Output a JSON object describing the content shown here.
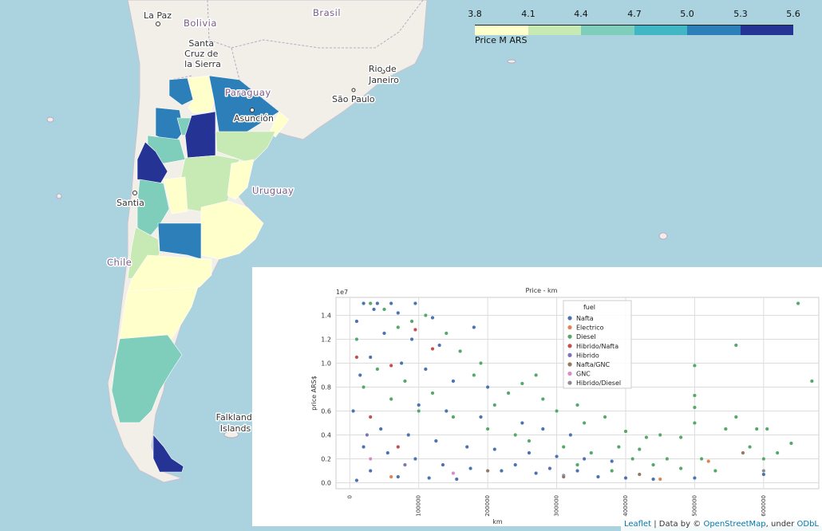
{
  "map": {
    "places": [
      {
        "key": "lapaz",
        "text": "La Paz"
      },
      {
        "key": "bolivia",
        "text": "Bolivia"
      },
      {
        "key": "santacruz",
        "lines": [
          "Santa",
          "Cruz de",
          "la Sierra"
        ]
      },
      {
        "key": "brasil",
        "text": "Brasil"
      },
      {
        "key": "paraguay",
        "text": "Paraguay"
      },
      {
        "key": "asuncion",
        "text": "Asunción"
      },
      {
        "key": "riodejaneiro",
        "lines": [
          "Rio de",
          "Janeiro"
        ]
      },
      {
        "key": "saopaulo",
        "text": "São Paulo"
      },
      {
        "key": "uruguay",
        "text": "Uruguay"
      },
      {
        "key": "santiago",
        "text": "Santia"
      },
      {
        "key": "chile",
        "text": "Chile"
      },
      {
        "key": "falkland",
        "lines": [
          "Falkland",
          "Islands"
        ]
      }
    ]
  },
  "legend": {
    "ticks": [
      "3.8",
      "4.1",
      "4.4",
      "4.7",
      "5.0",
      "5.3",
      "5.6"
    ],
    "colors": [
      "#ffffcc",
      "#c7e9b4",
      "#7fcdbb",
      "#41b6c4",
      "#2c7fb8",
      "#253494"
    ],
    "caption": "Price M ARS"
  },
  "attribution": {
    "leaflet": "Leaflet",
    "data_by": "| Data by ©",
    "osm": "OpenStreetMap",
    "under": ", under",
    "odbl": "ODbL"
  },
  "chart_data": {
    "type": "scatter",
    "title": "Price - km",
    "xlabel": "km",
    "ylabel": "price ARS$",
    "y_offset_label": "1e7",
    "xlim": [
      -20000,
      680000
    ],
    "ylim": [
      -0.05,
      1.55
    ],
    "x_ticks": [
      0,
      100000,
      200000,
      300000,
      400000,
      500000,
      600000
    ],
    "y_ticks": [
      0.0,
      0.2,
      0.4,
      0.6,
      0.8,
      1.0,
      1.2,
      1.4
    ],
    "grid": true,
    "legend_title": "fuel",
    "legend_position": "top-center",
    "series": [
      {
        "name": "Nafta",
        "color": "#4c72b0",
        "points": [
          [
            20000,
            1.5
          ],
          [
            40000,
            1.5
          ],
          [
            60000,
            1.5
          ],
          [
            95000,
            1.5
          ],
          [
            35000,
            1.45
          ],
          [
            70000,
            1.42
          ],
          [
            120000,
            1.38
          ],
          [
            180000,
            1.3
          ],
          [
            10000,
            1.35
          ],
          [
            50000,
            1.25
          ],
          [
            90000,
            1.2
          ],
          [
            130000,
            1.15
          ],
          [
            160000,
            1.1
          ],
          [
            30000,
            1.05
          ],
          [
            75000,
            1.0
          ],
          [
            110000,
            0.95
          ],
          [
            150000,
            0.85
          ],
          [
            200000,
            0.8
          ],
          [
            230000,
            0.75
          ],
          [
            15000,
            0.9
          ],
          [
            60000,
            0.7
          ],
          [
            100000,
            0.65
          ],
          [
            140000,
            0.6
          ],
          [
            190000,
            0.55
          ],
          [
            250000,
            0.5
          ],
          [
            280000,
            0.45
          ],
          [
            320000,
            0.4
          ],
          [
            5000,
            0.6
          ],
          [
            45000,
            0.45
          ],
          [
            85000,
            0.4
          ],
          [
            125000,
            0.35
          ],
          [
            170000,
            0.3
          ],
          [
            210000,
            0.28
          ],
          [
            260000,
            0.25
          ],
          [
            300000,
            0.22
          ],
          [
            340000,
            0.2
          ],
          [
            380000,
            0.18
          ],
          [
            20000,
            0.3
          ],
          [
            55000,
            0.25
          ],
          [
            95000,
            0.2
          ],
          [
            135000,
            0.15
          ],
          [
            175000,
            0.12
          ],
          [
            220000,
            0.1
          ],
          [
            270000,
            0.08
          ],
          [
            310000,
            0.06
          ],
          [
            360000,
            0.05
          ],
          [
            400000,
            0.04
          ],
          [
            440000,
            0.03
          ],
          [
            500000,
            0.04
          ],
          [
            600000,
            0.07
          ],
          [
            30000,
            0.1
          ],
          [
            70000,
            0.05
          ],
          [
            115000,
            0.04
          ],
          [
            155000,
            0.03
          ],
          [
            10000,
            0.02
          ],
          [
            240000,
            0.15
          ],
          [
            290000,
            0.12
          ],
          [
            330000,
            0.1
          ]
        ]
      },
      {
        "name": "Electrico",
        "color": "#dd8452",
        "points": [
          [
            520000,
            0.18
          ],
          [
            450000,
            0.03
          ],
          [
            60000,
            0.05
          ]
        ]
      },
      {
        "name": "Diesel",
        "color": "#55a868",
        "points": [
          [
            650000,
            1.5
          ],
          [
            560000,
            1.15
          ],
          [
            500000,
            0.98
          ],
          [
            670000,
            0.85
          ],
          [
            500000,
            0.73
          ],
          [
            500000,
            0.63
          ],
          [
            560000,
            0.55
          ],
          [
            590000,
            0.45
          ],
          [
            605000,
            0.45
          ],
          [
            640000,
            0.33
          ],
          [
            545000,
            0.45
          ],
          [
            500000,
            0.5
          ],
          [
            480000,
            0.38
          ],
          [
            450000,
            0.4
          ],
          [
            430000,
            0.38
          ],
          [
            420000,
            0.28
          ],
          [
            400000,
            0.43
          ],
          [
            390000,
            0.3
          ],
          [
            370000,
            0.55
          ],
          [
            340000,
            0.5
          ],
          [
            330000,
            0.65
          ],
          [
            300000,
            0.6
          ],
          [
            280000,
            0.7
          ],
          [
            270000,
            0.9
          ],
          [
            250000,
            0.83
          ],
          [
            230000,
            0.75
          ],
          [
            210000,
            0.65
          ],
          [
            190000,
            1.0
          ],
          [
            180000,
            0.9
          ],
          [
            160000,
            1.1
          ],
          [
            140000,
            1.25
          ],
          [
            110000,
            1.4
          ],
          [
            90000,
            1.35
          ],
          [
            70000,
            1.3
          ],
          [
            50000,
            1.45
          ],
          [
            30000,
            1.5
          ],
          [
            10000,
            1.2
          ],
          [
            40000,
            0.95
          ],
          [
            80000,
            0.85
          ],
          [
            120000,
            0.75
          ],
          [
            150000,
            0.55
          ],
          [
            200000,
            0.45
          ],
          [
            240000,
            0.4
          ],
          [
            260000,
            0.35
          ],
          [
            310000,
            0.3
          ],
          [
            350000,
            0.25
          ],
          [
            410000,
            0.2
          ],
          [
            460000,
            0.2
          ],
          [
            510000,
            0.2
          ],
          [
            600000,
            0.2
          ],
          [
            620000,
            0.25
          ],
          [
            580000,
            0.3
          ],
          [
            530000,
            0.1
          ],
          [
            480000,
            0.12
          ],
          [
            440000,
            0.15
          ],
          [
            380000,
            0.1
          ],
          [
            330000,
            0.15
          ],
          [
            100000,
            0.6
          ],
          [
            60000,
            0.7
          ],
          [
            20000,
            0.8
          ]
        ]
      },
      {
        "name": "Hibrido/Nafta",
        "color": "#c44e52",
        "points": [
          [
            10000,
            1.05
          ],
          [
            60000,
            0.98
          ],
          [
            95000,
            1.28
          ],
          [
            120000,
            1.12
          ],
          [
            30000,
            0.55
          ],
          [
            70000,
            0.3
          ]
        ]
      },
      {
        "name": "Hibrido",
        "color": "#8172b3",
        "points": [
          [
            25000,
            0.4
          ],
          [
            80000,
            0.15
          ]
        ]
      },
      {
        "name": "Nafta/GNC",
        "color": "#937860",
        "points": [
          [
            570000,
            0.25
          ],
          [
            200000,
            0.1
          ],
          [
            310000,
            0.05
          ],
          [
            420000,
            0.07
          ]
        ]
      },
      {
        "name": "GNC",
        "color": "#da8bc3",
        "points": [
          [
            30000,
            0.2
          ],
          [
            150000,
            0.08
          ]
        ]
      },
      {
        "name": "Hibrido/Diesel",
        "color": "#8c8c8c",
        "points": [
          [
            600000,
            0.1
          ]
        ]
      }
    ]
  }
}
